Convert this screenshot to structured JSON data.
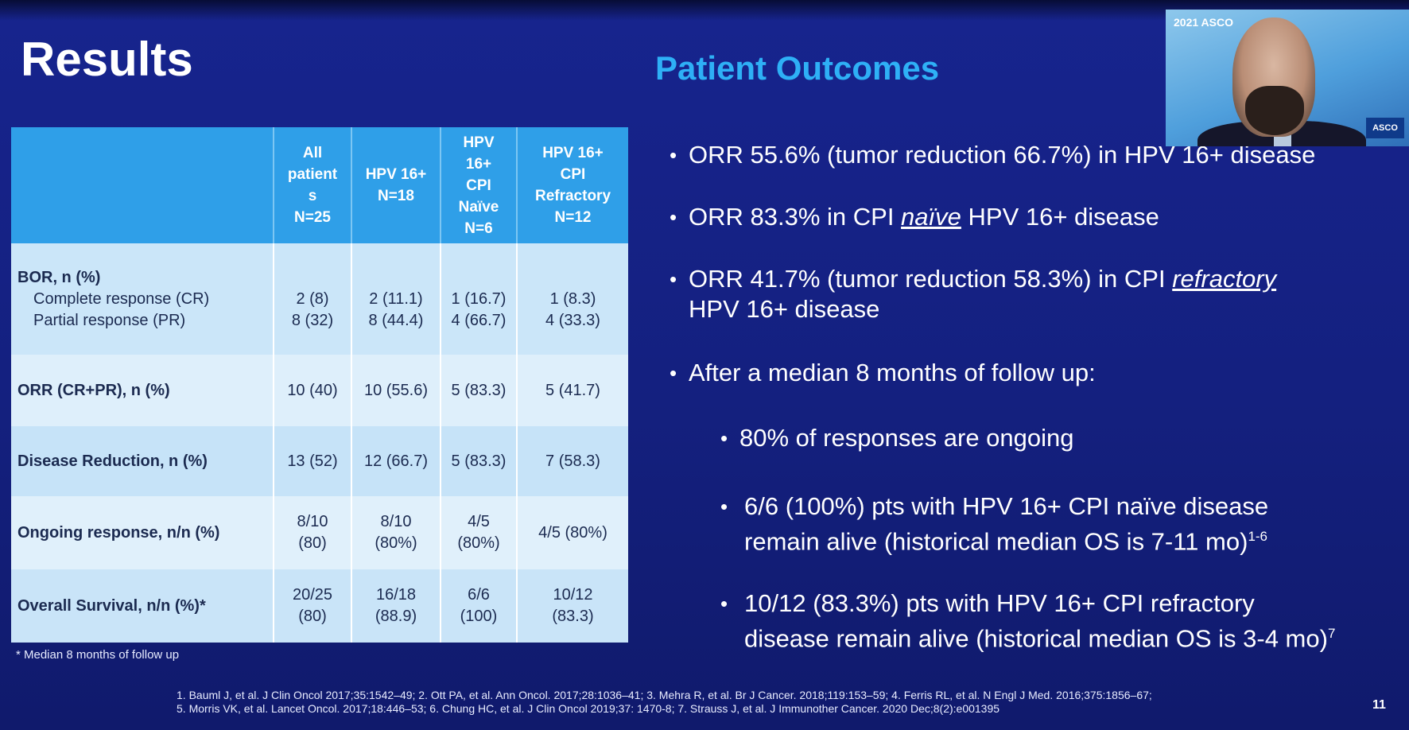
{
  "slide": {
    "title": "Results",
    "section_title": "Patient Outcomes",
    "page_number": "11"
  },
  "table": {
    "headers": [
      "",
      "All\npatient\ns\nN=25",
      "HPV 16+\nN=18",
      "HPV\n16+\nCPI\nNaïve\nN=6",
      "HPV 16+\nCPI\nRefractory\nN=12"
    ],
    "bor_label": "BOR, n (%)",
    "cr_label": "Complete response (CR)",
    "pr_label": "Partial response (PR)",
    "bor_values": [
      {
        "cr": "2 (8)",
        "pr": "8 (32)"
      },
      {
        "cr": "2 (11.1)",
        "pr": "8 (44.4)"
      },
      {
        "cr": "1 (16.7)",
        "pr": "4 (66.7)"
      },
      {
        "cr": "1 (8.3)",
        "pr": "4 (33.3)"
      }
    ],
    "rows": [
      {
        "label": "ORR (CR+PR), n (%)",
        "values": [
          "10 (40)",
          "10 (55.6)",
          "5 (83.3)",
          "5 (41.7)"
        ]
      },
      {
        "label": "Disease Reduction, n (%)",
        "values": [
          "13 (52)",
          "12 (66.7)",
          "5 (83.3)",
          "7 (58.3)"
        ]
      },
      {
        "label": "Ongoing response, n/n (%)",
        "values": [
          "8/10\n(80)",
          "8/10\n(80%)",
          "4/5\n(80%)",
          "4/5 (80%)"
        ]
      },
      {
        "label": "Overall Survival, n/n (%)*",
        "values": [
          "20/25\n(80)",
          "16/18\n(88.9)",
          "6/6\n(100)",
          "10/12\n(83.3)"
        ]
      }
    ],
    "footnote": "* Median 8 months of follow up"
  },
  "bullets": {
    "b1": "ORR 55.6% (tumor reduction 66.7%) in HPV 16+ disease",
    "b2_pre": "ORR 83.3% in CPI ",
    "b2_em": "naïve",
    "b2_post": " HPV 16+ disease",
    "b3_pre": "ORR 41.7% (tumor reduction 58.3%) in CPI ",
    "b3_em": "refractory",
    "b3_post": "HPV 16+ disease",
    "b4": "After a median 8 months of follow up:",
    "s1": "80% of responses are ongoing",
    "s2_line1": "6/6 (100%) pts with HPV 16+ CPI naïve disease",
    "s2_line2": "remain alive (historical median OS is 7-11 mo)",
    "s2_sup": "1-6",
    "s3_line1": "10/12 (83.3%) pts with HPV 16+ CPI refractory",
    "s3_line2": "disease remain alive (historical median OS is 3-4 mo)",
    "s3_sup": "7"
  },
  "references": {
    "line1": "1. Bauml J, et al. J Clin Oncol 2017;35:1542–49; 2. Ott PA, et al. Ann Oncol. 2017;28:1036–41; 3. Mehra R, et al. Br J Cancer. 2018;119:153–59; 4. Ferris RL, et al. N Engl J Med. 2016;375:1856–67;",
    "line2": "5. Morris VK, et al. Lancet Oncol. 2017;18:446–53; 6. Chung HC, et al. J Clin Oncol 2019;37: 1470-8; 7. Strauss J, et al. J Immunother Cancer. 2020 Dec;8(2):e001395"
  },
  "video": {
    "logo": "2021 ASCO",
    "badge": "ASCO"
  }
}
